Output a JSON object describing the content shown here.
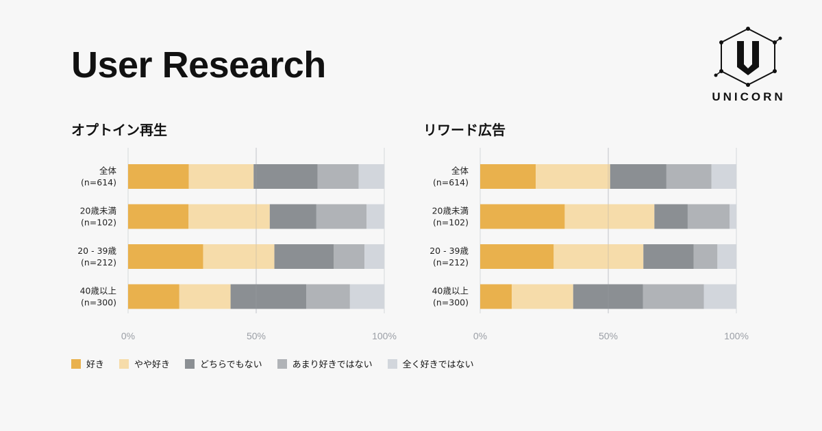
{
  "header": {
    "title": "User Research"
  },
  "logo": {
    "text": "UNICORN"
  },
  "colors": {
    "suki": "#e9b14d",
    "yaya_suki": "#f6dcaa",
    "dochira": "#8b8f93",
    "amari": "#b0b3b7",
    "mattaku": "#d2d6dc"
  },
  "legend": [
    {
      "label": "好き",
      "color": "#e9b14d"
    },
    {
      "label": "やや好き",
      "color": "#f6dcaa"
    },
    {
      "label": "どちらでもない",
      "color": "#8b8f93"
    },
    {
      "label": "あまり好きではない",
      "color": "#b0b3b7"
    },
    {
      "label": "全く好きではない",
      "color": "#d2d6dc"
    }
  ],
  "chart_data": [
    {
      "type": "bar",
      "orientation": "horizontal",
      "stacked": true,
      "title": "オプトイン再生",
      "categories": [
        [
          "全体",
          "(n=614)"
        ],
        [
          "20歳未満",
          "(n=102)"
        ],
        [
          "20 - 39歳",
          "(n=212)"
        ],
        [
          "40歳以上",
          "(n=300)"
        ]
      ],
      "xlim": [
        0,
        100
      ],
      "ticks": [
        0,
        50,
        100
      ],
      "tick_labels": [
        "0%",
        "50%",
        "100%"
      ],
      "grid": true,
      "legend_position": "bottom",
      "series": [
        {
          "name": "好き",
          "values": [
            23.7,
            23.6,
            29.3,
            20.0
          ]
        },
        {
          "name": "やや好き",
          "values": [
            25.3,
            31.7,
            27.8,
            20.0
          ]
        },
        {
          "name": "どちらでもない",
          "values": [
            25.0,
            18.2,
            23.2,
            29.6
          ]
        },
        {
          "name": "あまり好きではない",
          "values": [
            16.0,
            19.6,
            12.0,
            17.0
          ]
        },
        {
          "name": "全く好きではない",
          "values": [
            10.0,
            6.9,
            7.7,
            13.4
          ]
        }
      ]
    },
    {
      "type": "bar",
      "orientation": "horizontal",
      "stacked": true,
      "title": "リワード広告",
      "categories": [
        [
          "全体",
          "(n=614)"
        ],
        [
          "20歳未満",
          "(n=102)"
        ],
        [
          "20 - 39歳",
          "(n=212)"
        ],
        [
          "40歳以上",
          "(n=300)"
        ]
      ],
      "xlim": [
        0,
        100
      ],
      "ticks": [
        0,
        50,
        100
      ],
      "tick_labels": [
        "0%",
        "50%",
        "100%"
      ],
      "grid": true,
      "legend_position": "bottom",
      "series": [
        {
          "name": "好き",
          "values": [
            21.7,
            33.0,
            28.7,
            12.3
          ]
        },
        {
          "name": "やや好き",
          "values": [
            29.0,
            35.0,
            35.0,
            24.0
          ]
        },
        {
          "name": "どちらでもない",
          "values": [
            22.0,
            13.0,
            19.6,
            27.2
          ]
        },
        {
          "name": "あまり好きではない",
          "values": [
            17.6,
            16.4,
            9.3,
            23.8
          ]
        },
        {
          "name": "全く好きではない",
          "values": [
            9.7,
            2.6,
            7.4,
            12.7
          ]
        }
      ]
    }
  ]
}
